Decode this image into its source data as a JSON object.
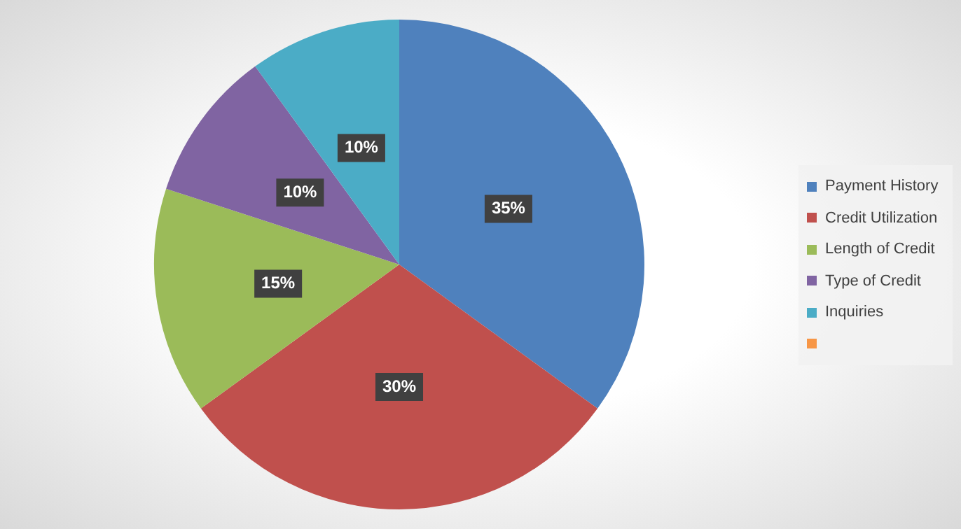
{
  "chart_data": {
    "type": "pie",
    "categories": [
      "Payment History",
      "Credit Utilization",
      "Length of Credit",
      "Type of Credit",
      "Inquiries",
      null
    ],
    "values": [
      35,
      30,
      15,
      10,
      10,
      0
    ],
    "colors": [
      "#4f81bd",
      "#c0504d",
      "#9bbb59",
      "#8064a2",
      "#4bacc6",
      "#f79646"
    ],
    "value_labels": [
      "35%",
      "30%",
      "15%",
      "10%",
      "10%",
      null
    ],
    "legend": "right"
  }
}
